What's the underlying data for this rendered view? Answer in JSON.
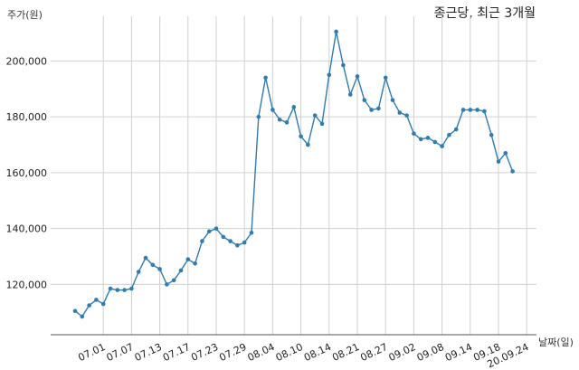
{
  "chart_data": {
    "type": "line",
    "title": "종근당, 최근 3개월",
    "ylabel": "주가(원)",
    "xlabel": "날짜(일)",
    "ylim": [
      102000,
      216000
    ],
    "yticks": [
      "120,000",
      "140,000",
      "160,000",
      "180,000",
      "200,000"
    ],
    "ytick_values": [
      120000,
      140000,
      160000,
      180000,
      200000
    ],
    "xticks": [
      "07.01",
      "07.07",
      "07.13",
      "07.17",
      "07.23",
      "07.29",
      "08.04",
      "08.10",
      "08.14",
      "08.21",
      "08.27",
      "09.02",
      "09.08",
      "09.14",
      "09.18",
      "20.09.24"
    ],
    "xtick_index": [
      4,
      8,
      12,
      16,
      20,
      24,
      28,
      32,
      36,
      40,
      44,
      48,
      52,
      56,
      60,
      64
    ],
    "grid": true,
    "color": "#2e7cb0",
    "series": [
      {
        "values": [
          110500,
          108500,
          112500,
          114500,
          113000,
          118500,
          118000,
          118000,
          118500,
          124500,
          129500,
          127000,
          125500,
          120000,
          121500,
          125000,
          129000,
          127500,
          135500,
          139000,
          140000,
          137000,
          135500,
          134000,
          135000,
          138500,
          180000,
          194000,
          182500,
          179000,
          178000,
          183500,
          173000,
          170000,
          180500,
          177500,
          195000,
          210500,
          198500,
          188000,
          194500,
          186000,
          182500,
          183000,
          194000,
          186000,
          181500,
          180500,
          174000,
          172000,
          172500,
          171000,
          169500,
          173500,
          175500,
          182500,
          182500,
          182500,
          182000,
          173500,
          164000,
          167000,
          160500
        ]
      }
    ]
  }
}
